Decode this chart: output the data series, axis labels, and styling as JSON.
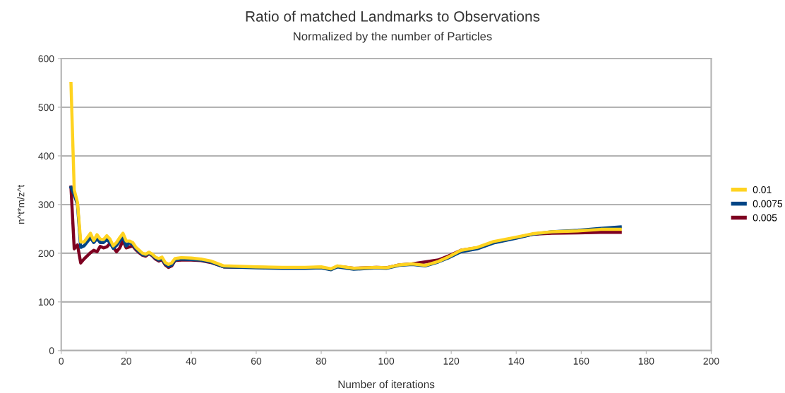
{
  "chart_data": {
    "type": "line",
    "title": "Ratio of matched Landmarks to Observations",
    "subtitle": "Normalized by the number of Particles",
    "xlabel": "Number of iterations",
    "ylabel": "n^t*m/z^t",
    "xlim": [
      0,
      200
    ],
    "xticks": [
      0,
      20,
      40,
      60,
      80,
      100,
      120,
      140,
      160,
      180,
      200
    ],
    "ylim": [
      0,
      600
    ],
    "yticks": [
      0,
      100,
      200,
      300,
      400,
      500,
      600
    ],
    "grid": "y",
    "legend": "right",
    "marker": "none",
    "line_style": "solid",
    "series": [
      {
        "name": "0.01",
        "color": "#ffd320",
        "x": [
          3,
          4,
          5,
          6,
          7,
          9,
          10,
          11,
          12,
          13,
          14,
          15,
          16,
          17,
          18,
          19,
          20,
          21,
          22,
          23,
          24,
          25,
          26,
          27,
          28,
          29,
          30,
          31,
          32,
          33,
          34,
          35,
          37,
          40,
          43,
          46,
          50,
          55,
          60,
          68,
          75,
          80,
          83,
          85,
          90,
          97,
          100,
          104,
          108,
          112,
          116,
          119,
          123,
          128,
          133,
          140,
          145,
          151,
          159,
          166,
          172
        ],
        "values": [
          549,
          330,
          304,
          223,
          223,
          241,
          226,
          238,
          229,
          228,
          236,
          229,
          215,
          222,
          232,
          241,
          225,
          225,
          222,
          212,
          206,
          200,
          198,
          202,
          198,
          192,
          189,
          192,
          181,
          177,
          180,
          189,
          191,
          190,
          188,
          184,
          174,
          173,
          172,
          171,
          171,
          172,
          168,
          174,
          169,
          171,
          170,
          176,
          178,
          175,
          183,
          192,
          206,
          212,
          224,
          233,
          240,
          244,
          246,
          249,
          249
        ]
      },
      {
        "name": "0.0075",
        "color": "#004586",
        "x": [
          3,
          4,
          5,
          6,
          7,
          9,
          10,
          11,
          12,
          13,
          14,
          15,
          16,
          17,
          18,
          19,
          20,
          21,
          22,
          23,
          24,
          25,
          26,
          27,
          28,
          29,
          30,
          31,
          32,
          33,
          34,
          35,
          37,
          40,
          43,
          46,
          50,
          55,
          60,
          68,
          75,
          80,
          83,
          85,
          90,
          97,
          100,
          104,
          108,
          112,
          116,
          119,
          123,
          128,
          133,
          140,
          145,
          151,
          159,
          166,
          172
        ],
        "values": [
          335,
          320,
          300,
          212,
          215,
          232,
          222,
          230,
          222,
          222,
          228,
          222,
          210,
          216,
          225,
          233,
          215,
          222,
          218,
          209,
          203,
          197,
          196,
          200,
          196,
          190,
          186,
          189,
          178,
          173,
          176,
          186,
          188,
          187,
          186,
          182,
          172,
          171,
          170,
          169,
          169,
          170,
          166,
          172,
          167,
          170,
          169,
          175,
          177,
          174,
          182,
          190,
          203,
          209,
          221,
          231,
          239,
          244,
          247,
          251,
          254
        ]
      },
      {
        "name": "0.005",
        "color": "#7e0021",
        "x": [
          3,
          4,
          5,
          6,
          7,
          9,
          10,
          11,
          12,
          13,
          14,
          15,
          16,
          17,
          18,
          19,
          20,
          21,
          22,
          23,
          24,
          25,
          26,
          27,
          28,
          29,
          30,
          31,
          32,
          33,
          34,
          35,
          37,
          40,
          43,
          46,
          50,
          55,
          60,
          68,
          75,
          80,
          83,
          85,
          90,
          97,
          100,
          104,
          108,
          116,
          119,
          123,
          128,
          133,
          140,
          145,
          151,
          159,
          166,
          172
        ],
        "values": [
          336,
          209,
          217,
          180,
          188,
          201,
          206,
          203,
          214,
          211,
          213,
          220,
          213,
          203,
          211,
          226,
          211,
          213,
          215,
          207,
          201,
          196,
          194,
          199,
          195,
          188,
          184,
          187,
          176,
          171,
          174,
          185,
          186,
          186,
          185,
          181,
          172,
          171,
          171,
          170,
          170,
          171,
          167,
          173,
          169,
          171,
          170,
          176,
          178,
          186,
          194,
          206,
          211,
          222,
          232,
          239,
          241,
          242,
          243,
          243
        ]
      }
    ]
  }
}
